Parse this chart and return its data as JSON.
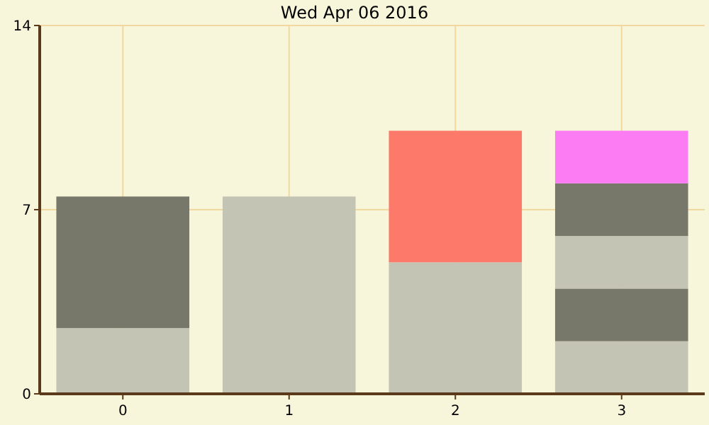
{
  "chart_data": {
    "type": "bar",
    "title": "Wed Apr 06 2016",
    "categories": [
      "0",
      "1",
      "2",
      "3"
    ],
    "stacked": true,
    "ylim": [
      0,
      14
    ],
    "yticks": [
      0,
      7,
      14
    ],
    "grid": true,
    "series": [
      {
        "colors": [
          "#c4c4b4",
          "#c4c4b4",
          "#c4c4b4",
          "#c4c4b4"
        ],
        "values": [
          2.5,
          7.5,
          5,
          2
        ]
      },
      {
        "colors": [
          "#77776a",
          null,
          "#fd7a6a",
          "#77776a"
        ],
        "values": [
          5,
          null,
          5,
          2
        ]
      },
      {
        "colors": [
          null,
          null,
          null,
          "#c4c4b4"
        ],
        "values": [
          null,
          null,
          null,
          2
        ]
      },
      {
        "colors": [
          null,
          null,
          null,
          "#77776a"
        ],
        "values": [
          null,
          null,
          null,
          2
        ]
      },
      {
        "colors": [
          null,
          null,
          null,
          "#fc7cf4"
        ],
        "values": [
          null,
          null,
          null,
          2
        ]
      }
    ]
  }
}
